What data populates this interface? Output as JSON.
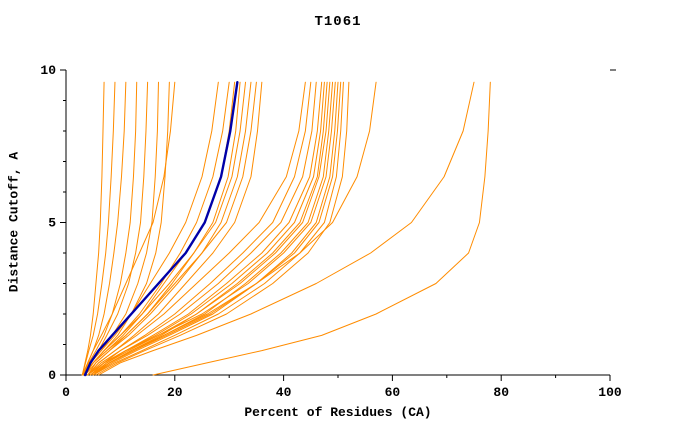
{
  "colors": {
    "model_line": "#ff8c00",
    "consensus_line": "#0000a8",
    "axis": "#000000",
    "background": "#ffffff"
  },
  "chart_data": {
    "type": "line",
    "title": "T1061",
    "xlabel": "Percent of Residues (CA)",
    "ylabel": "Distance Cutoff, A",
    "xlim": [
      0,
      100
    ],
    "ylim": [
      0,
      10
    ],
    "x_major_ticks": [
      0,
      20,
      40,
      60,
      80,
      100
    ],
    "x_minor_step": 10,
    "y_major_ticks": [
      0,
      5,
      10
    ],
    "y_minor_step": 1,
    "grid": false,
    "legend": "none",
    "cutoffs": [
      0,
      0.4,
      0.8,
      1.3,
      2,
      3,
      4,
      5,
      6.5,
      8,
      9.6
    ],
    "series": [
      {
        "name": "model-01",
        "role": "model",
        "percent_values": [
          3,
          3.5,
          4,
          4.5,
          5,
          5.5,
          6,
          6.3,
          6.6,
          6.8,
          7
        ]
      },
      {
        "name": "model-02",
        "role": "model",
        "percent_values": [
          3,
          3.6,
          4.2,
          5,
          5.8,
          6.6,
          7.3,
          7.8,
          8.3,
          8.7,
          9
        ]
      },
      {
        "name": "model-03",
        "role": "model",
        "percent_values": [
          3.2,
          4,
          5,
          6,
          7,
          8,
          8.8,
          9.5,
          10.2,
          10.7,
          11
        ]
      },
      {
        "name": "model-04",
        "role": "model",
        "percent_values": [
          3,
          4.2,
          5.5,
          7,
          8.5,
          10,
          11,
          11.8,
          12.4,
          12.8,
          13
        ]
      },
      {
        "name": "model-05",
        "role": "model",
        "percent_values": [
          3.5,
          4.5,
          6,
          7.5,
          9.5,
          11.5,
          12.8,
          13.7,
          14.3,
          14.7,
          15
        ]
      },
      {
        "name": "model-06",
        "role": "model",
        "percent_values": [
          3,
          4.5,
          6.5,
          8.5,
          11,
          13.2,
          14.8,
          15.8,
          16.4,
          16.8,
          17
        ]
      },
      {
        "name": "model-07",
        "role": "model",
        "percent_values": [
          3.5,
          5,
          7,
          9.5,
          12,
          14.8,
          16.5,
          17.5,
          18.2,
          18.7,
          19
        ]
      },
      {
        "name": "model-08",
        "role": "model",
        "percent_values": [
          3,
          4,
          5,
          6.5,
          8.5,
          11,
          13.5,
          16,
          18,
          19.2,
          20
        ]
      },
      {
        "name": "model-09",
        "role": "model",
        "percent_values": [
          3,
          4.5,
          6.5,
          9,
          12,
          15.5,
          19,
          22,
          25,
          26.8,
          28
        ]
      },
      {
        "name": "model-10",
        "role": "model",
        "percent_values": [
          3.5,
          5,
          7,
          10,
          13.5,
          17.5,
          21,
          24,
          27,
          28.8,
          30
        ]
      },
      {
        "name": "model-11",
        "role": "model",
        "percent_values": [
          3,
          5,
          7.5,
          10.5,
          14,
          18,
          22,
          25.5,
          28.5,
          30,
          31
        ]
      },
      {
        "name": "model-12",
        "role": "model",
        "percent_values": [
          4,
          5.5,
          8,
          11,
          15,
          19.5,
          23.5,
          27,
          29.8,
          31.2,
          32
        ]
      },
      {
        "name": "model-13",
        "role": "model",
        "percent_values": [
          3,
          5,
          7,
          10,
          14,
          19,
          23.5,
          27.5,
          30.5,
          32,
          33
        ]
      },
      {
        "name": "model-14",
        "role": "model",
        "percent_values": [
          3.5,
          5.5,
          8,
          11.5,
          15.5,
          20.5,
          25,
          28.5,
          31.5,
          33,
          34
        ]
      },
      {
        "name": "model-15",
        "role": "model",
        "percent_values": [
          3,
          5,
          7.5,
          11,
          15,
          20,
          25,
          29.5,
          32.5,
          34,
          35
        ]
      },
      {
        "name": "model-16",
        "role": "model",
        "percent_values": [
          4,
          6,
          9,
          12.5,
          17,
          22,
          27,
          31,
          34,
          35.2,
          36
        ]
      },
      {
        "name": "model-17",
        "role": "model",
        "percent_values": [
          4,
          6,
          9,
          13,
          18,
          24,
          30,
          35.5,
          40.5,
          42.8,
          44
        ]
      },
      {
        "name": "model-18",
        "role": "model",
        "percent_values": [
          4.5,
          7,
          10,
          14.5,
          20,
          26.5,
          32.5,
          38,
          42,
          44,
          45
        ]
      },
      {
        "name": "model-19",
        "role": "model",
        "percent_values": [
          4,
          6.5,
          10,
          15,
          21,
          28,
          34,
          39.5,
          43.5,
          45.2,
          46
        ]
      },
      {
        "name": "model-20",
        "role": "model",
        "percent_values": [
          5,
          7.5,
          11,
          16,
          22.5,
          29.5,
          36,
          41,
          44.8,
          46.2,
          47
        ]
      },
      {
        "name": "model-21",
        "role": "model",
        "percent_values": [
          4,
          7,
          11,
          16.5,
          23,
          30.5,
          37,
          42,
          45.5,
          46.8,
          47.5
        ]
      },
      {
        "name": "model-22",
        "role": "model",
        "percent_values": [
          5,
          8,
          12,
          17.5,
          24,
          31.5,
          38,
          43,
          46.2,
          47.3,
          48
        ]
      },
      {
        "name": "model-23",
        "role": "model",
        "percent_values": [
          4.5,
          7.5,
          11.5,
          17,
          24,
          32,
          38.5,
          43.5,
          46.5,
          47.8,
          48.5
        ]
      },
      {
        "name": "model-24",
        "role": "model",
        "percent_values": [
          5,
          8,
          12.5,
          18,
          25.5,
          33,
          39.5,
          44.5,
          47.3,
          48.3,
          49
        ]
      },
      {
        "name": "model-25",
        "role": "model",
        "percent_values": [
          4,
          7,
          11,
          17,
          25,
          33.5,
          40,
          45,
          47.8,
          48.8,
          49.5
        ]
      },
      {
        "name": "model-26",
        "role": "model",
        "percent_values": [
          5,
          8.5,
          13,
          19,
          27,
          35,
          41.5,
          46,
          48.5,
          49.4,
          50
        ]
      },
      {
        "name": "model-27",
        "role": "model",
        "percent_values": [
          4.5,
          8,
          12.5,
          18.5,
          26.5,
          35,
          42,
          46.5,
          49,
          49.9,
          50.5
        ]
      },
      {
        "name": "model-28",
        "role": "model",
        "percent_values": [
          5,
          9,
          14,
          20,
          28,
          36.5,
          43,
          47.5,
          49.7,
          50.5,
          51
        ]
      },
      {
        "name": "model-29",
        "role": "model",
        "percent_values": [
          5.5,
          9.5,
          14.5,
          21,
          29.5,
          38,
          44.5,
          48.5,
          50.8,
          51.6,
          52
        ]
      },
      {
        "name": "model-30",
        "role": "model",
        "percent_values": [
          5,
          8,
          12,
          18,
          26,
          35,
          43,
          49,
          53.5,
          55.8,
          57
        ]
      },
      {
        "name": "model-31",
        "role": "model",
        "percent_values": [
          6,
          10,
          16,
          24,
          34,
          46,
          56,
          63.5,
          69.5,
          73,
          75
        ]
      },
      {
        "name": "model-32",
        "role": "model",
        "percent_values": [
          16,
          26,
          36,
          47,
          57,
          68,
          74,
          76,
          77,
          77.6,
          78
        ]
      },
      {
        "name": "consensus",
        "role": "consensus",
        "percent_values": [
          3.5,
          4.5,
          6,
          8.5,
          12,
          17,
          22,
          25.5,
          28.5,
          30.2,
          31.5
        ]
      }
    ]
  }
}
